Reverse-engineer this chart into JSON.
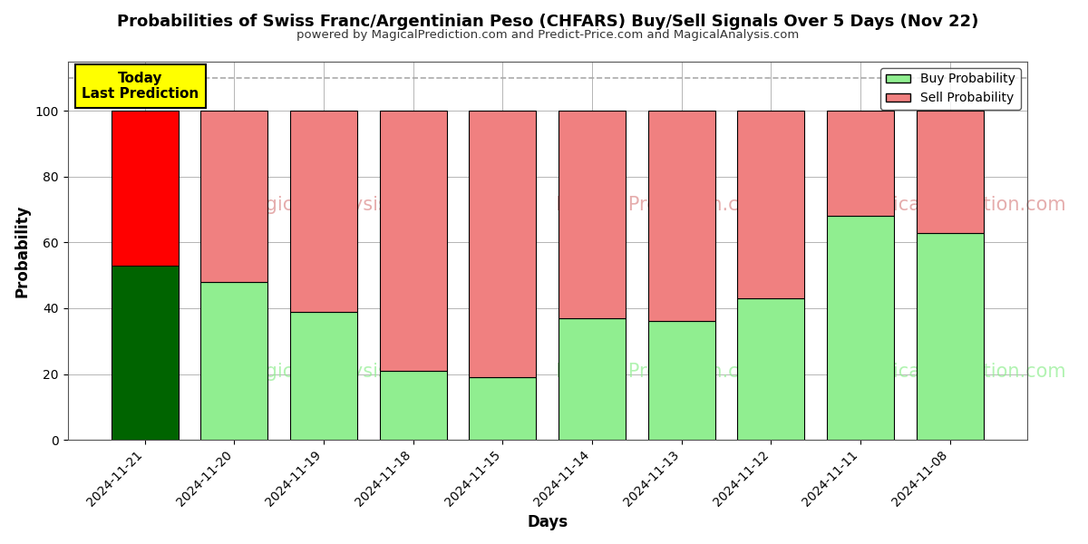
{
  "title": "Probabilities of Swiss Franc/Argentinian Peso (CHFARS) Buy/Sell Signals Over 5 Days (Nov 22)",
  "subtitle": "powered by MagicalPrediction.com and Predict-Price.com and MagicalAnalysis.com",
  "xlabel": "Days",
  "ylabel": "Probability",
  "dates": [
    "2024-11-21",
    "2024-11-20",
    "2024-11-19",
    "2024-11-18",
    "2024-11-15",
    "2024-11-14",
    "2024-11-13",
    "2024-11-12",
    "2024-11-11",
    "2024-11-08"
  ],
  "buy_values": [
    53,
    48,
    39,
    21,
    19,
    37,
    36,
    43,
    68,
    63
  ],
  "sell_values": [
    47,
    52,
    61,
    79,
    81,
    63,
    64,
    57,
    32,
    37
  ],
  "today_bar_buy_color": "#006400",
  "today_bar_sell_color": "#FF0000",
  "normal_bar_buy_color": "#90EE90",
  "normal_bar_sell_color": "#F08080",
  "bar_edge_color": "#000000",
  "today_annotation_text": "Today\nLast Prediction",
  "today_annotation_facecolor": "#FFFF00",
  "today_annotation_edgecolor": "#000000",
  "legend_buy_label": "Buy Probability",
  "legend_sell_label": "Sell Probability",
  "dashed_line_y": 110,
  "ylim": [
    0,
    115
  ],
  "yticks": [
    0,
    20,
    40,
    60,
    80,
    100
  ],
  "grid_color": "#aaaaaa",
  "background_color": "#ffffff"
}
